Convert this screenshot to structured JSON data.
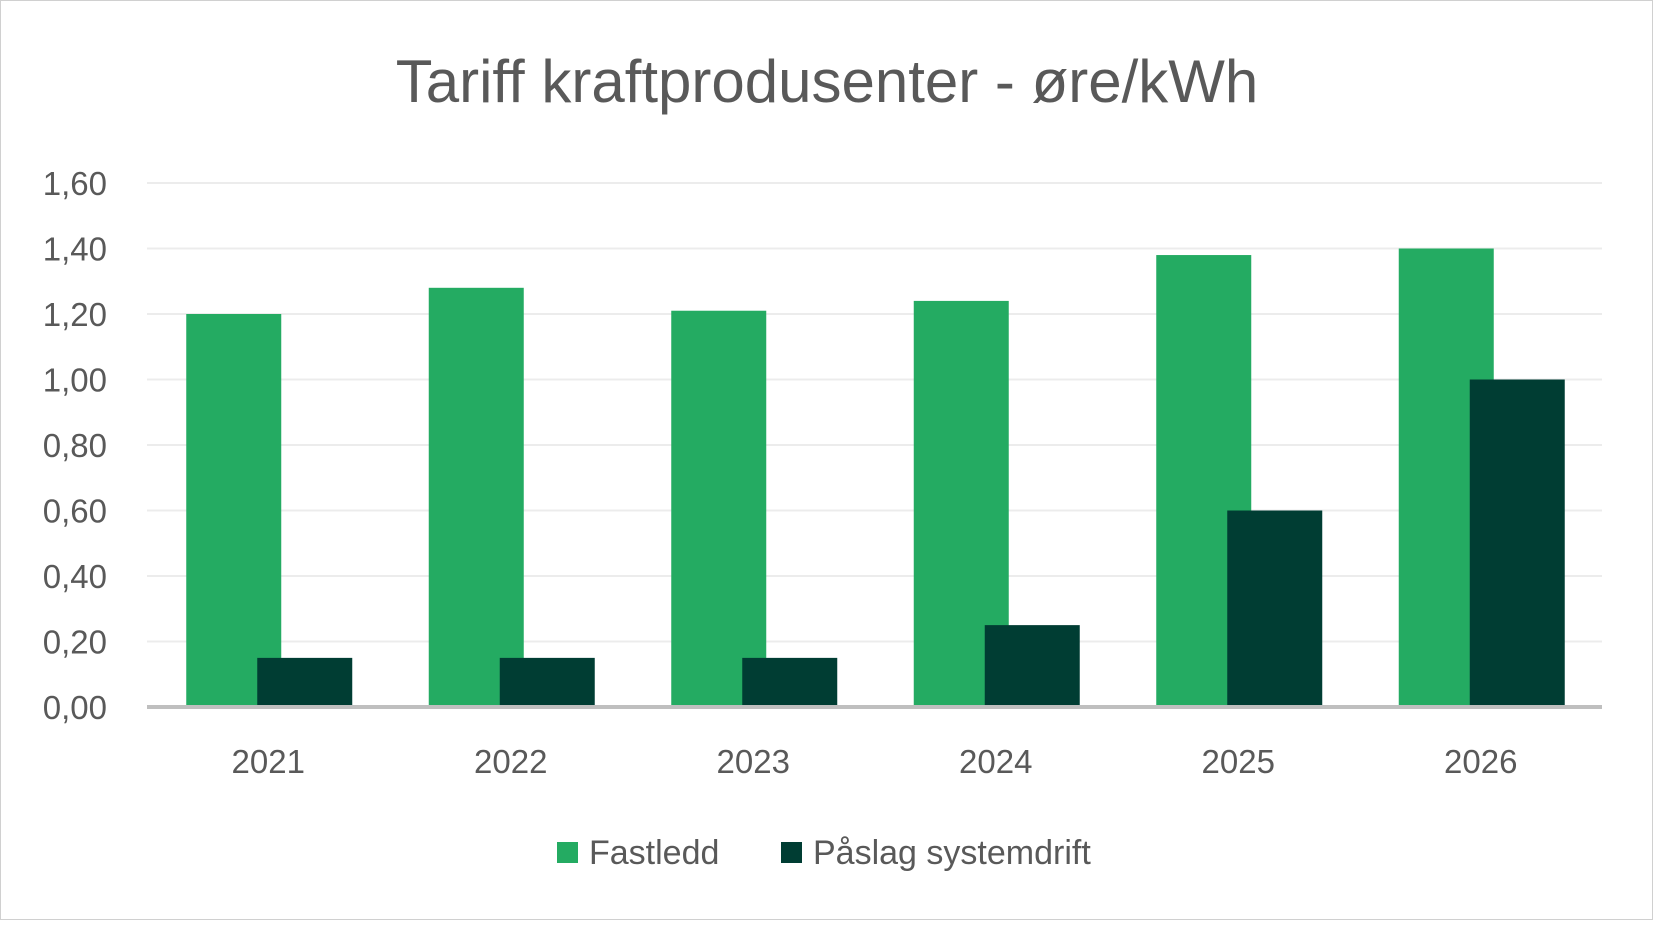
{
  "chart_data": {
    "type": "bar",
    "title": "Tariff kraftprodusenter - øre/kWh",
    "xlabel": "",
    "ylabel": "",
    "categories": [
      "2021",
      "2022",
      "2023",
      "2024",
      "2025",
      "2026"
    ],
    "series": [
      {
        "name": "Fastledd",
        "color": "#24AB62",
        "values": [
          1.2,
          1.28,
          1.21,
          1.24,
          1.38,
          1.4
        ]
      },
      {
        "name": "Påslag systemdrift",
        "color": "#003D33",
        "values": [
          0.15,
          0.15,
          0.15,
          0.25,
          0.6,
          1.0
        ]
      }
    ],
    "ylim": [
      0,
      1.6
    ],
    "yticks": [
      "0,00",
      "0,20",
      "0,40",
      "0,60",
      "0,80",
      "1,00",
      "1,20",
      "1,40",
      "1,60"
    ],
    "grid": true,
    "legend_position": "bottom"
  }
}
